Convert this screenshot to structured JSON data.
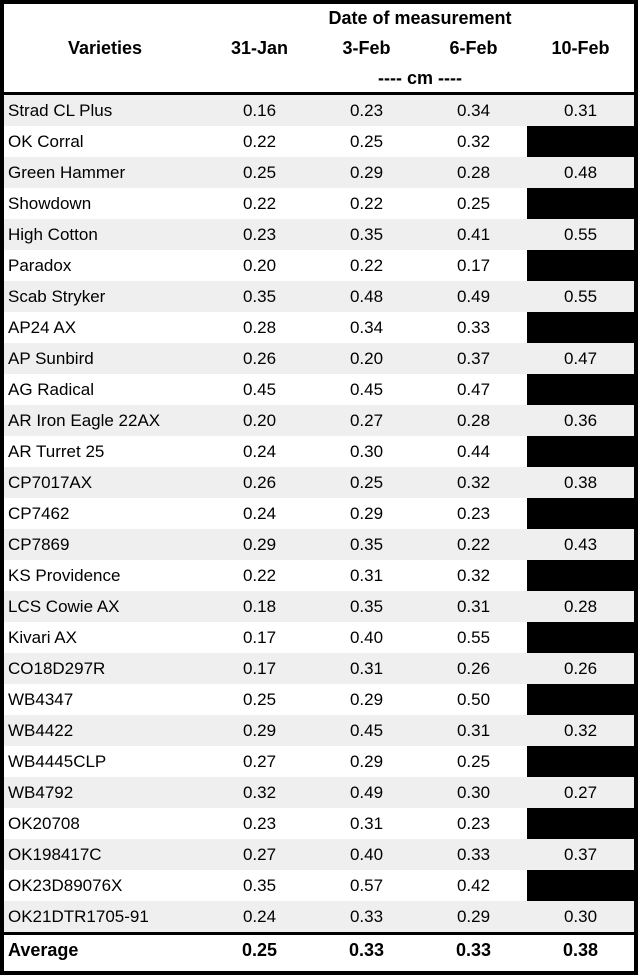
{
  "table": {
    "title": "Date of measurement",
    "varieties_header": "Varieties",
    "date_columns": [
      "31-Jan",
      "3-Feb",
      "6-Feb",
      "10-Feb"
    ],
    "unit_label": "---- cm ----",
    "redaction_color": "#000000",
    "stripe_color": "#efefef",
    "rows": [
      {
        "variety": "Strad CL Plus",
        "values": [
          "0.16",
          "0.23",
          "0.34",
          "0.31"
        ]
      },
      {
        "variety": "OK Corral",
        "values": [
          "0.22",
          "0.25",
          "0.32",
          null
        ]
      },
      {
        "variety": "Green Hammer",
        "values": [
          "0.25",
          "0.29",
          "0.28",
          "0.48"
        ]
      },
      {
        "variety": "Showdown",
        "values": [
          "0.22",
          "0.22",
          "0.25",
          null
        ]
      },
      {
        "variety": "High Cotton",
        "values": [
          "0.23",
          "0.35",
          "0.41",
          "0.55"
        ]
      },
      {
        "variety": "Paradox",
        "values": [
          "0.20",
          "0.22",
          "0.17",
          null
        ]
      },
      {
        "variety": "Scab Stryker",
        "values": [
          "0.35",
          "0.48",
          "0.49",
          "0.55"
        ]
      },
      {
        "variety": "AP24 AX",
        "values": [
          "0.28",
          "0.34",
          "0.33",
          null
        ]
      },
      {
        "variety": "AP Sunbird",
        "values": [
          "0.26",
          "0.20",
          "0.37",
          "0.47"
        ]
      },
      {
        "variety": "AG Radical",
        "values": [
          "0.45",
          "0.45",
          "0.47",
          null
        ]
      },
      {
        "variety": "AR Iron Eagle 22AX",
        "values": [
          "0.20",
          "0.27",
          "0.28",
          "0.36"
        ]
      },
      {
        "variety": "AR Turret 25",
        "values": [
          "0.24",
          "0.30",
          "0.44",
          null
        ]
      },
      {
        "variety": "CP7017AX",
        "values": [
          "0.26",
          "0.25",
          "0.32",
          "0.38"
        ]
      },
      {
        "variety": "CP7462",
        "values": [
          "0.24",
          "0.29",
          "0.23",
          null
        ]
      },
      {
        "variety": "CP7869",
        "values": [
          "0.29",
          "0.35",
          "0.22",
          "0.43"
        ]
      },
      {
        "variety": "KS Providence",
        "values": [
          "0.22",
          "0.31",
          "0.32",
          null
        ]
      },
      {
        "variety": "LCS Cowie AX",
        "values": [
          "0.18",
          "0.35",
          "0.31",
          "0.28"
        ]
      },
      {
        "variety": "Kivari AX",
        "values": [
          "0.17",
          "0.40",
          "0.55",
          null
        ]
      },
      {
        "variety": "CO18D297R",
        "values": [
          "0.17",
          "0.31",
          "0.26",
          "0.26"
        ]
      },
      {
        "variety": "WB4347",
        "values": [
          "0.25",
          "0.29",
          "0.50",
          null
        ]
      },
      {
        "variety": "WB4422",
        "values": [
          "0.29",
          "0.45",
          "0.31",
          "0.32"
        ]
      },
      {
        "variety": "WB4445CLP",
        "values": [
          "0.27",
          "0.29",
          "0.25",
          null
        ]
      },
      {
        "variety": "WB4792",
        "values": [
          "0.32",
          "0.49",
          "0.30",
          "0.27"
        ]
      },
      {
        "variety": "OK20708",
        "values": [
          "0.23",
          "0.31",
          "0.23",
          null
        ]
      },
      {
        "variety": "OK198417C",
        "values": [
          "0.27",
          "0.40",
          "0.33",
          "0.37"
        ]
      },
      {
        "variety": "OK23D89076X",
        "values": [
          "0.35",
          "0.57",
          "0.42",
          null
        ]
      },
      {
        "variety": "OK21DTR1705-91",
        "values": [
          "0.24",
          "0.33",
          "0.29",
          "0.30"
        ]
      }
    ],
    "average": {
      "label": "Average",
      "values": [
        "0.25",
        "0.33",
        "0.33",
        "0.38"
      ]
    }
  }
}
